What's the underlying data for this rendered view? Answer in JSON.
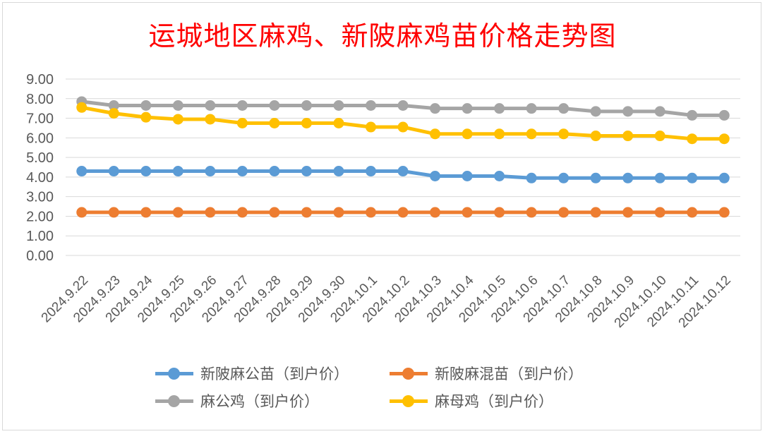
{
  "chart_data": {
    "type": "line",
    "title": "运城地区麻鸡、新陂麻鸡苗价格走势图",
    "title_color": "#ff0000",
    "xlabel": "",
    "ylabel": "",
    "ylim": [
      0,
      9
    ],
    "ytick_labels": [
      "0.00",
      "1.00",
      "2.00",
      "3.00",
      "4.00",
      "5.00",
      "6.00",
      "7.00",
      "8.00",
      "9.00"
    ],
    "grid": true,
    "legend_position": "bottom",
    "categories": [
      "2024.9.22",
      "2024.9.23",
      "2024.9.24",
      "2024.9.25",
      "2024.9.26",
      "2024.9.27",
      "2024.9.28",
      "2024.9.29",
      "2024.9.30",
      "2024.10.1",
      "2024.10.2",
      "2024.10.3",
      "2024.10.4",
      "2024.10.5",
      "2024.10.6",
      "2024.10.7",
      "2024.10.8",
      "2024.10.9",
      "2024.10.10",
      "2024.10.11",
      "2024.10.12"
    ],
    "series": [
      {
        "name": "新陂麻公苗（到户价）",
        "color": "#5b9bd5",
        "values": [
          4.3,
          4.3,
          4.3,
          4.3,
          4.3,
          4.3,
          4.3,
          4.3,
          4.3,
          4.3,
          4.3,
          4.05,
          4.05,
          4.05,
          3.95,
          3.95,
          3.95,
          3.95,
          3.95,
          3.95,
          3.95
        ]
      },
      {
        "name": "新陂麻混苗（到户价）",
        "color": "#ed7d31",
        "values": [
          2.2,
          2.2,
          2.2,
          2.2,
          2.2,
          2.2,
          2.2,
          2.2,
          2.2,
          2.2,
          2.2,
          2.2,
          2.2,
          2.2,
          2.2,
          2.2,
          2.2,
          2.2,
          2.2,
          2.2,
          2.2
        ]
      },
      {
        "name": "麻公鸡（到户价）",
        "color": "#a5a5a5",
        "values": [
          7.85,
          7.65,
          7.65,
          7.65,
          7.65,
          7.65,
          7.65,
          7.65,
          7.65,
          7.65,
          7.65,
          7.5,
          7.5,
          7.5,
          7.5,
          7.5,
          7.35,
          7.35,
          7.35,
          7.15,
          7.15
        ]
      },
      {
        "name": "麻母鸡（到户价）",
        "color": "#ffc000",
        "values": [
          7.55,
          7.25,
          7.05,
          6.95,
          6.95,
          6.75,
          6.75,
          6.75,
          6.75,
          6.55,
          6.55,
          6.2,
          6.2,
          6.2,
          6.2,
          6.2,
          6.1,
          6.1,
          6.1,
          5.95,
          5.95
        ]
      }
    ]
  }
}
